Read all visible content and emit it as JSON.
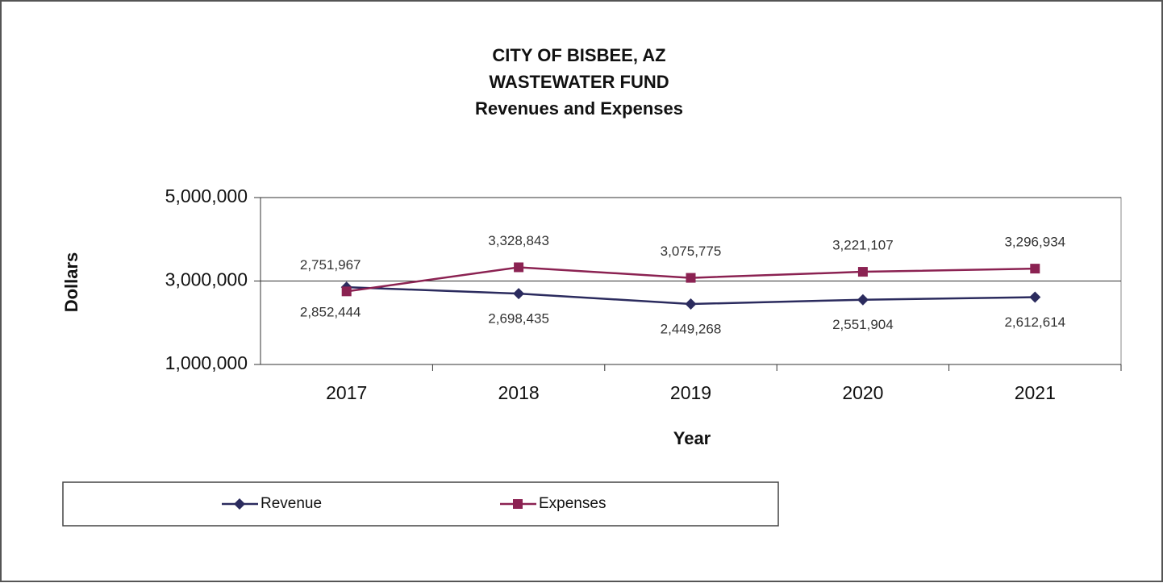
{
  "chart_data": {
    "type": "line",
    "title": "CITY OF BISBEE, AZ",
    "subtitle": "WASTEWATER FUND",
    "subtitle2": "Revenues and Expenses",
    "y_label": "Dollars",
    "x_label": "Year",
    "categories": [
      "2017",
      "2018",
      "2019",
      "2020",
      "2021"
    ],
    "series": [
      {
        "name": "Revenue",
        "color": "#2b2b5e",
        "marker": "diamond",
        "values": [
          2852444,
          2698435,
          2449268,
          2551904,
          2612614
        ],
        "value_labels": [
          "2,852,444",
          "2,698,435",
          "2,449,268",
          "2,551,904",
          "2,612,614"
        ]
      },
      {
        "name": "Expenses",
        "color": "#8b2252",
        "marker": "square",
        "values": [
          2751967,
          3328843,
          3075775,
          3221107,
          3296934
        ],
        "value_labels": [
          "2,751,967",
          "3,328,843",
          "3,075,775",
          "3,221,107",
          "3,296,934"
        ]
      }
    ],
    "ylim": [
      1000000,
      5000000
    ],
    "yticks": [
      {
        "value": 1000000,
        "label": "1,000,000"
      },
      {
        "value": 3000000,
        "label": "3,000,000"
      },
      {
        "value": 5000000,
        "label": "5,000,000"
      }
    ],
    "grid": true,
    "legend": "bottom"
  }
}
